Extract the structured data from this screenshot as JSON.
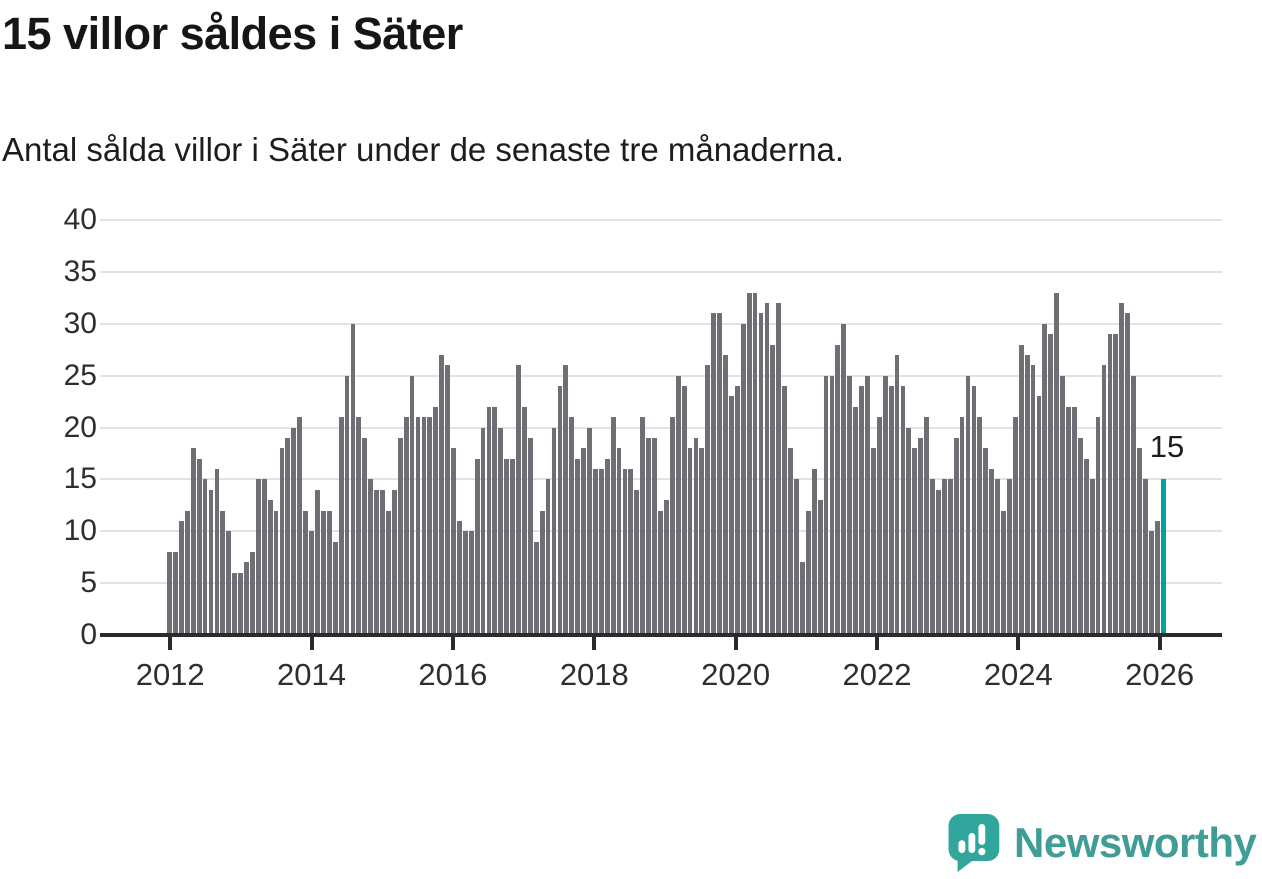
{
  "header": {
    "title": "15 villor såldes i Säter",
    "subtitle": "Antal sålda villor i Säter under de senaste tre månaderna."
  },
  "chart_data": {
    "type": "bar",
    "title": "15 villor såldes i Säter",
    "subtitle": "Antal sålda villor i Säter under de senaste tre månaderna.",
    "xlabel": "",
    "ylabel": "",
    "ylim": [
      0,
      40
    ],
    "yticks": [
      0,
      5,
      10,
      15,
      20,
      25,
      30,
      35,
      40
    ],
    "xticks": [
      "2012",
      "2014",
      "2016",
      "2018",
      "2020",
      "2022",
      "2024",
      "2026"
    ],
    "grid": "horizontal",
    "legend": "none",
    "frequency": "monthly-rolling-3-month-sum",
    "start_year": 2012,
    "bar_color": "#6f6e75",
    "highlight_color": "#00a49d",
    "values": [
      8,
      8,
      11,
      12,
      18,
      17,
      15,
      14,
      16,
      12,
      10,
      6,
      6,
      7,
      8,
      15,
      15,
      13,
      12,
      18,
      19,
      20,
      21,
      12,
      10,
      14,
      12,
      12,
      9,
      21,
      25,
      30,
      21,
      19,
      15,
      14,
      14,
      12,
      14,
      19,
      21,
      25,
      21,
      21,
      21,
      22,
      27,
      26,
      18,
      11,
      10,
      10,
      17,
      20,
      22,
      22,
      20,
      17,
      17,
      26,
      22,
      19,
      9,
      12,
      15,
      20,
      24,
      26,
      21,
      17,
      18,
      20,
      16,
      16,
      17,
      21,
      18,
      16,
      16,
      14,
      21,
      19,
      19,
      12,
      13,
      21,
      25,
      24,
      18,
      19,
      18,
      26,
      31,
      31,
      27,
      23,
      24,
      30,
      33,
      33,
      31,
      32,
      28,
      32,
      24,
      18,
      15,
      7,
      12,
      16,
      13,
      25,
      25,
      28,
      30,
      25,
      22,
      24,
      25,
      18,
      21,
      25,
      24,
      27,
      24,
      20,
      18,
      19,
      21,
      15,
      14,
      15,
      15,
      19,
      21,
      25,
      24,
      21,
      18,
      16,
      15,
      12,
      15,
      21,
      28,
      27,
      26,
      23,
      30,
      29,
      33,
      25,
      22,
      22,
      19,
      17,
      15,
      21,
      26,
      29,
      29,
      32,
      31,
      25,
      18,
      15,
      10,
      11
    ],
    "highlight": {
      "value": 15,
      "label": "15"
    }
  },
  "footer": {
    "brand": "Newsworthy",
    "logo_icon": "bar-chart-speech-bubble-icon",
    "brand_color": "#3f9d96",
    "icon_color": "#31a69c"
  }
}
